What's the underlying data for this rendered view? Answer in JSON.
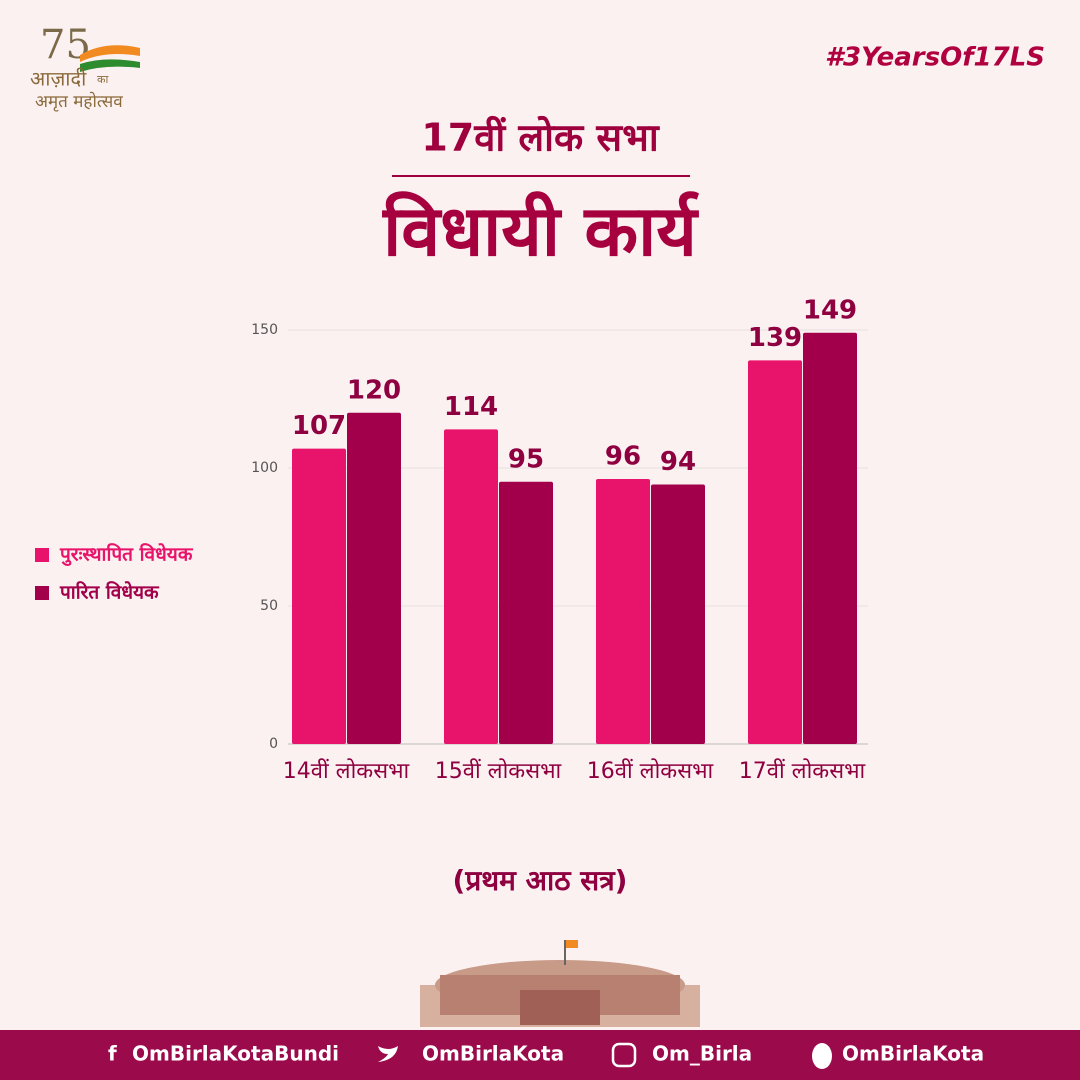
{
  "logo": {
    "number": "75",
    "line1": "आज़ादी",
    "small": "का",
    "line2": "अमृत महोत्सव"
  },
  "hashtag": "#3YearsOf17LS",
  "header": {
    "title": "17वीं लोक सभा",
    "subtitle": "विधायी कार्य"
  },
  "chart_data": {
    "type": "bar",
    "categories": [
      "14वीं लोकसभा",
      "15वीं लोकसभा",
      "16वीं लोकसभा",
      "17वीं लोकसभा"
    ],
    "series": [
      {
        "name": "पुरःस्थापित विधेयक",
        "color": "#e8136b",
        "values": [
          107,
          114,
          96,
          139
        ]
      },
      {
        "name": "पारित विधेयक",
        "color": "#a2004a",
        "values": [
          120,
          95,
          94,
          149
        ]
      }
    ],
    "ylim": [
      0,
      150
    ],
    "yticks": [
      0,
      50,
      100,
      150
    ],
    "grid": true,
    "legend": "left",
    "note": "(प्रथम आठ सत्र)"
  },
  "footer": {
    "facebook": "OmBirlaKotaBundi",
    "twitter": "OmBirlaKota",
    "instagram": "Om_Birla",
    "koo": "OmBirlaKota"
  }
}
